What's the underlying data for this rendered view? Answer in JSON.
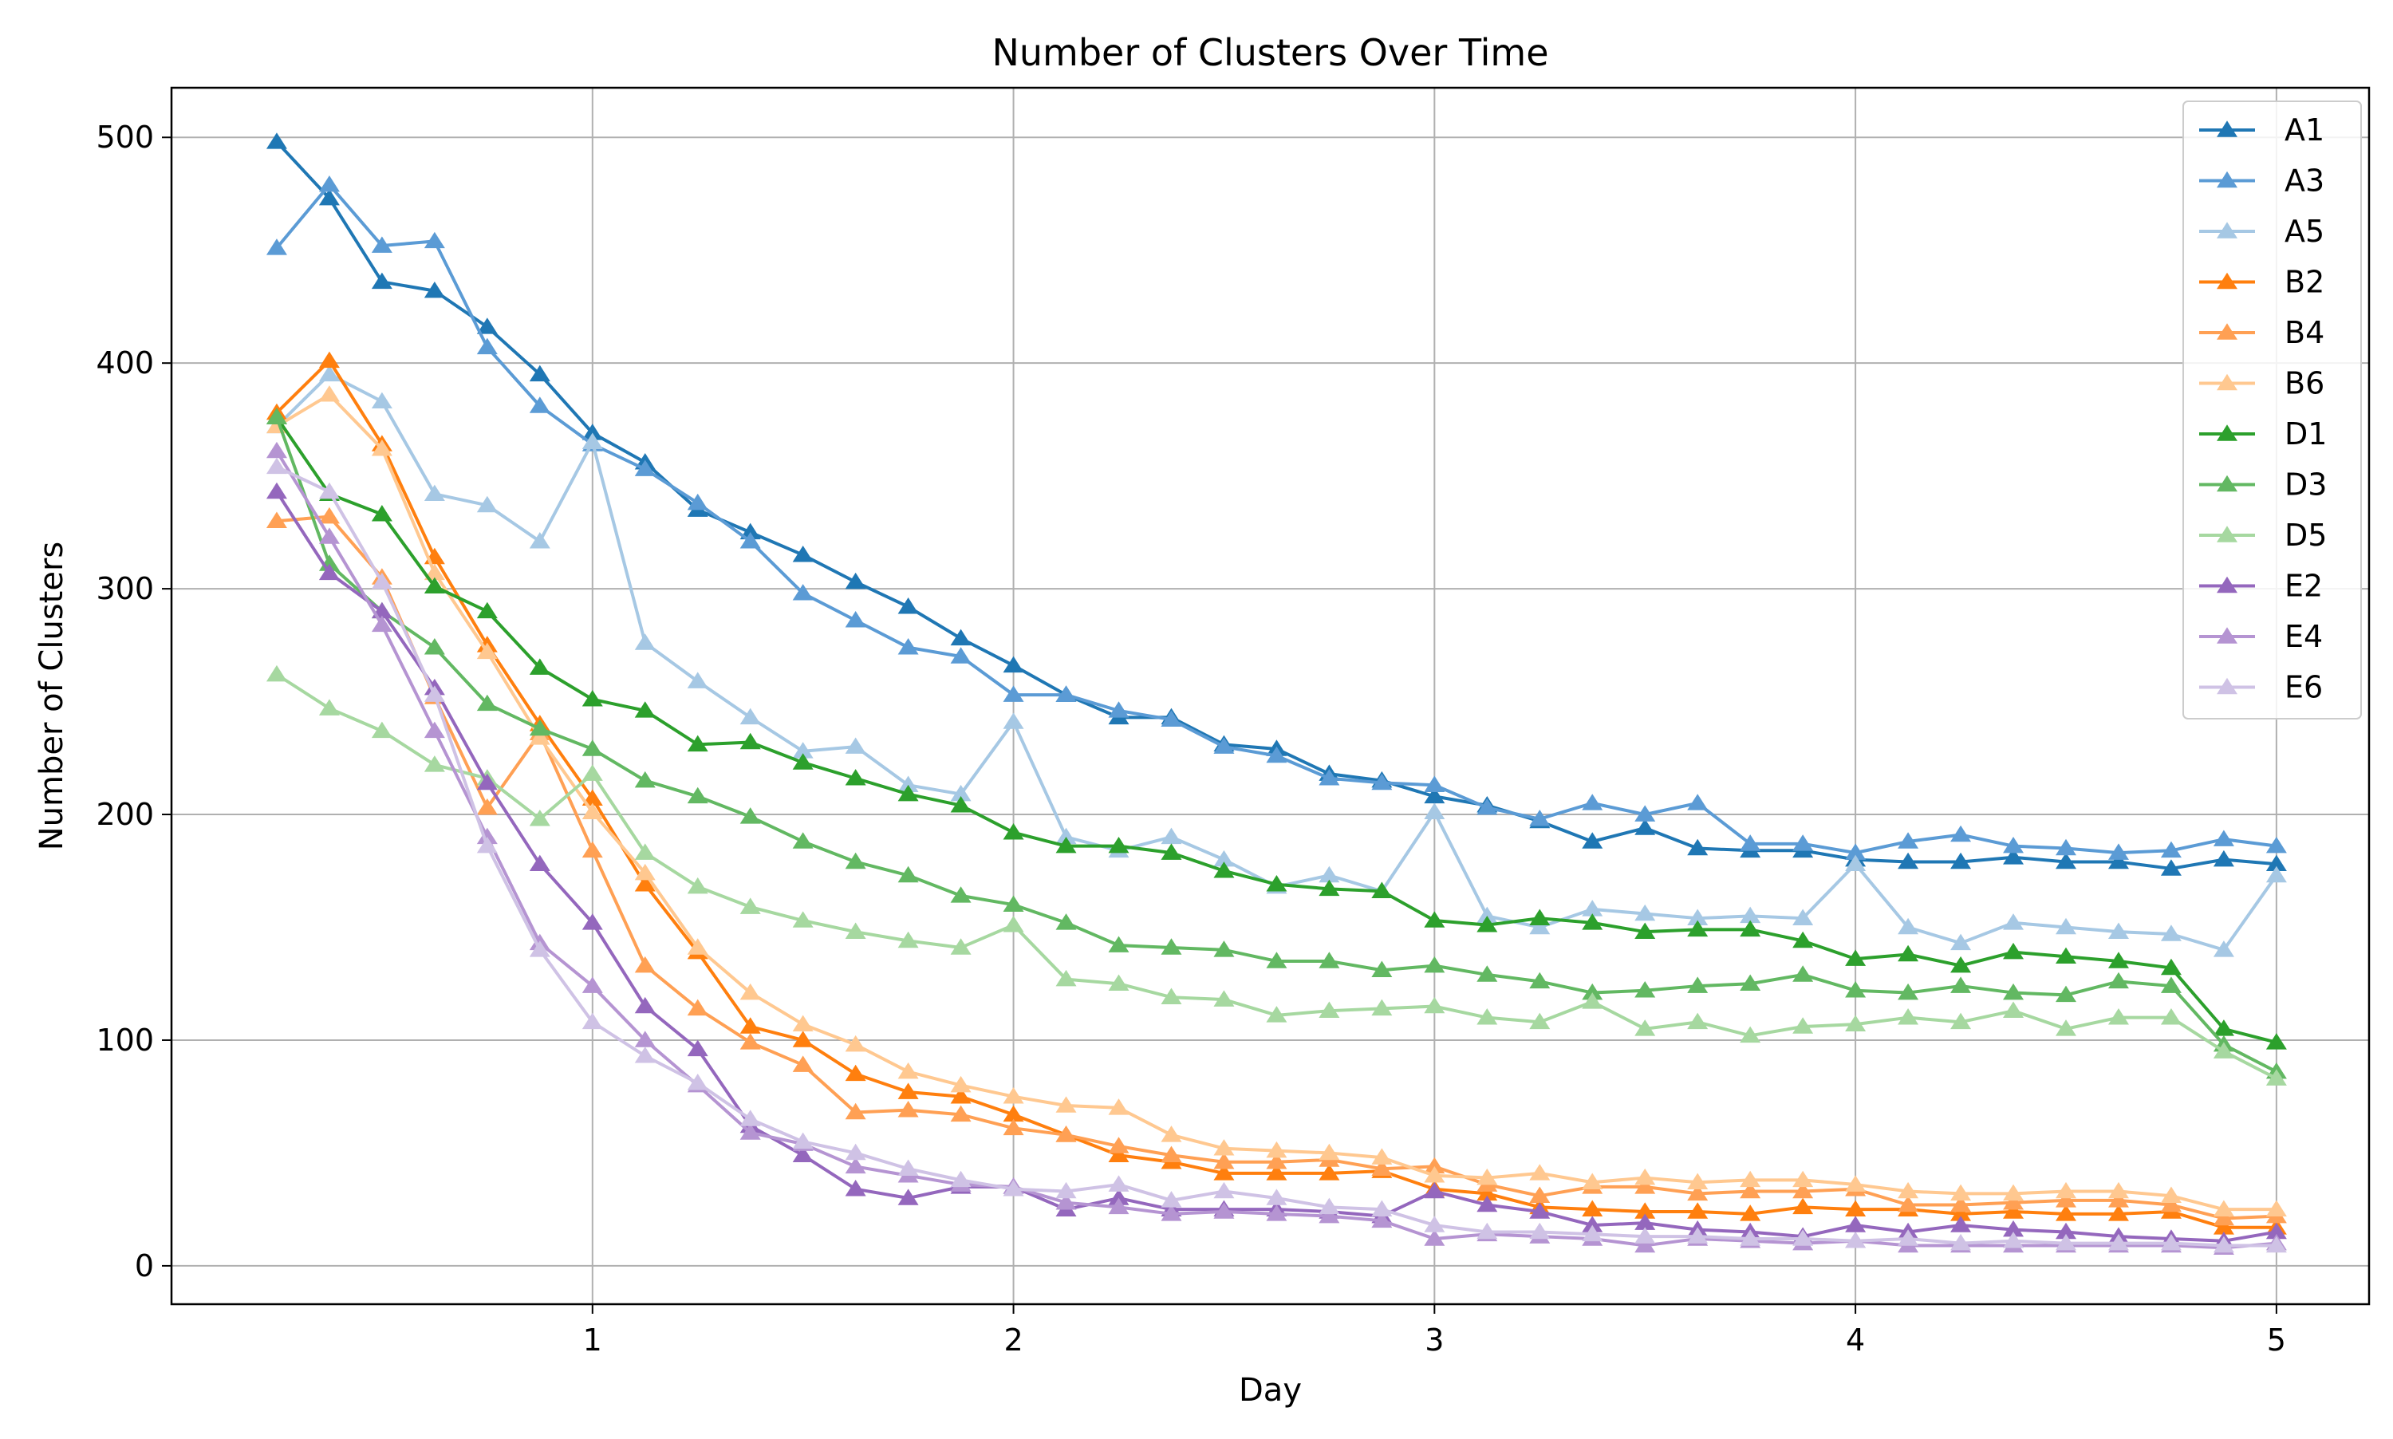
{
  "chart_data": {
    "type": "line",
    "title": "Number of Clusters Over Time",
    "xlabel": "Day",
    "ylabel": "Number of Clusters",
    "xlim": [
      0.0,
      5.22
    ],
    "ylim": [
      -17,
      522
    ],
    "xticks": [
      1,
      2,
      3,
      4,
      5
    ],
    "yticks": [
      0,
      100,
      200,
      300,
      400,
      500
    ],
    "grid": true,
    "legend_position": "top-right",
    "marker": "triangle",
    "x": [
      0.25,
      0.375,
      0.5,
      0.625,
      0.75,
      0.875,
      1.0,
      1.125,
      1.25,
      1.375,
      1.5,
      1.625,
      1.75,
      1.875,
      2.0,
      2.125,
      2.25,
      2.375,
      2.5,
      2.625,
      2.75,
      2.875,
      3.0,
      3.125,
      3.25,
      3.375,
      3.5,
      3.625,
      3.75,
      3.875,
      4.0,
      4.125,
      4.25,
      4.375,
      4.5,
      4.625,
      4.75,
      4.875,
      5.0
    ],
    "series": [
      {
        "name": "A1",
        "color": "#1f77b4",
        "values": [
          498,
          473,
          436,
          432,
          416,
          395,
          369,
          356,
          335,
          325,
          315,
          303,
          292,
          278,
          266,
          253,
          243,
          243,
          231,
          229,
          218,
          215,
          208,
          204,
          197,
          188,
          194,
          185,
          184,
          184,
          180,
          179,
          179,
          181,
          179,
          179,
          176,
          180,
          178
        ]
      },
      {
        "name": "A3",
        "color": "#5b9bd5",
        "values": [
          451,
          479,
          452,
          454,
          407,
          381,
          364,
          353,
          338,
          321,
          298,
          286,
          274,
          270,
          253,
          253,
          246,
          242,
          230,
          226,
          216,
          214,
          213,
          203,
          198,
          205,
          200,
          205,
          187,
          187,
          183,
          188,
          191,
          186,
          185,
          183,
          184,
          189,
          186
        ]
      },
      {
        "name": "A5",
        "color": "#a6c8e4",
        "values": [
          372,
          395,
          383,
          342,
          337,
          321,
          365,
          276,
          259,
          243,
          228,
          230,
          213,
          209,
          241,
          190,
          184,
          190,
          180,
          168,
          173,
          166,
          201,
          155,
          150,
          158,
          156,
          154,
          155,
          154,
          178,
          150,
          143,
          152,
          150,
          148,
          147,
          140,
          173
        ]
      },
      {
        "name": "B2",
        "color": "#ff7f0e",
        "values": [
          378,
          401,
          364,
          314,
          275,
          240,
          207,
          169,
          139,
          106,
          100,
          85,
          77,
          75,
          67,
          58,
          49,
          46,
          41,
          41,
          41,
          42,
          34,
          32,
          26,
          25,
          24,
          24,
          23,
          26,
          25,
          25,
          23,
          24,
          23,
          23,
          24,
          17,
          17
        ]
      },
      {
        "name": "B4",
        "color": "#ffa054",
        "values": [
          330,
          332,
          305,
          252,
          203,
          236,
          184,
          133,
          114,
          99,
          89,
          68,
          69,
          67,
          61,
          58,
          53,
          49,
          46,
          46,
          47,
          43,
          44,
          36,
          31,
          35,
          35,
          32,
          33,
          33,
          34,
          27,
          27,
          28,
          29,
          29,
          27,
          21,
          22
        ]
      },
      {
        "name": "B6",
        "color": "#ffc890",
        "values": [
          372,
          386,
          362,
          307,
          272,
          234,
          201,
          174,
          141,
          121,
          107,
          98,
          86,
          80,
          75,
          71,
          70,
          58,
          52,
          51,
          50,
          48,
          40,
          39,
          41,
          37,
          39,
          37,
          38,
          38,
          36,
          33,
          32,
          32,
          33,
          33,
          31,
          25,
          25
        ]
      },
      {
        "name": "D1",
        "color": "#2ca02c",
        "values": [
          376,
          342,
          333,
          301,
          290,
          265,
          251,
          246,
          231,
          232,
          223,
          216,
          209,
          204,
          192,
          186,
          186,
          183,
          175,
          169,
          167,
          166,
          153,
          151,
          154,
          152,
          148,
          149,
          149,
          144,
          136,
          138,
          133,
          139,
          137,
          135,
          132,
          105,
          99
        ]
      },
      {
        "name": "D3",
        "color": "#62b862",
        "values": [
          376,
          311,
          290,
          274,
          249,
          238,
          229,
          215,
          208,
          199,
          188,
          179,
          173,
          164,
          160,
          152,
          142,
          141,
          140,
          135,
          135,
          131,
          133,
          129,
          126,
          121,
          122,
          124,
          125,
          129,
          122,
          121,
          124,
          121,
          120,
          126,
          124,
          98,
          86
        ]
      },
      {
        "name": "D5",
        "color": "#a6d8a0",
        "values": [
          262,
          247,
          237,
          222,
          216,
          198,
          218,
          183,
          168,
          159,
          153,
          148,
          144,
          141,
          151,
          127,
          125,
          119,
          118,
          111,
          113,
          114,
          115,
          110,
          108,
          117,
          105,
          108,
          102,
          106,
          107,
          110,
          108,
          113,
          105,
          110,
          110,
          95,
          83
        ]
      },
      {
        "name": "E2",
        "color": "#9467bd",
        "values": [
          343,
          307,
          290,
          256,
          214,
          178,
          152,
          115,
          96,
          62,
          49,
          34,
          30,
          35,
          35,
          25,
          30,
          25,
          25,
          25,
          24,
          22,
          33,
          27,
          24,
          18,
          19,
          16,
          15,
          13,
          18,
          15,
          18,
          16,
          15,
          13,
          12,
          11,
          15
        ]
      },
      {
        "name": "E4",
        "color": "#b594d2",
        "values": [
          361,
          323,
          284,
          237,
          190,
          143,
          124,
          100,
          80,
          59,
          54,
          44,
          40,
          36,
          35,
          28,
          26,
          23,
          24,
          23,
          22,
          20,
          12,
          14,
          13,
          12,
          9,
          12,
          11,
          10,
          11,
          9,
          9,
          9,
          9,
          9,
          9,
          8,
          10
        ]
      },
      {
        "name": "E6",
        "color": "#cfc2e5",
        "values": [
          354,
          343,
          303,
          253,
          186,
          140,
          108,
          93,
          81,
          65,
          55,
          50,
          43,
          38,
          34,
          33,
          36,
          29,
          33,
          30,
          26,
          25,
          18,
          15,
          15,
          14,
          13,
          13,
          12,
          12,
          11,
          12,
          10,
          11,
          10,
          10,
          10,
          9,
          9
        ]
      }
    ]
  }
}
